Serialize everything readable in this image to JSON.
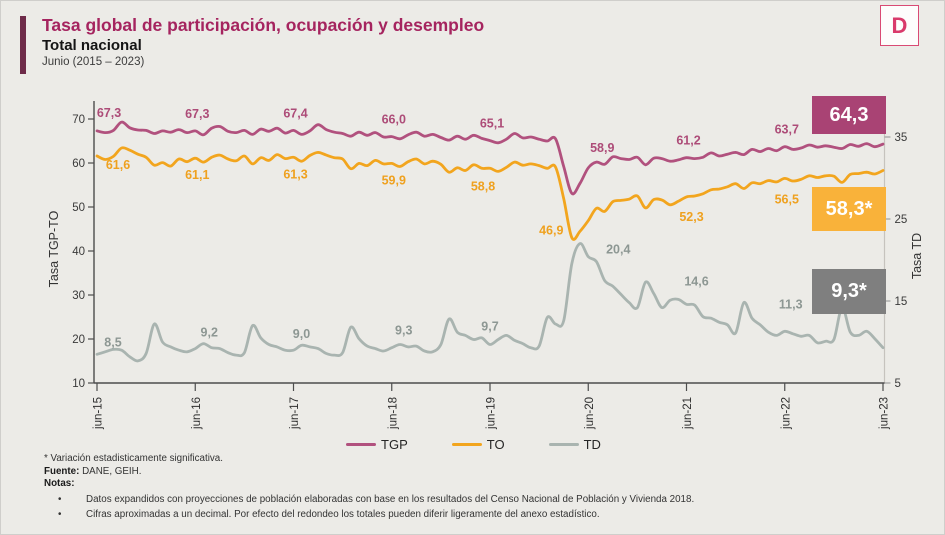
{
  "header": {
    "title": "Tasa global de participación, ocupación y desempleo",
    "subtitle": "Total nacional",
    "period": "Junio (2015 – 2023)",
    "logo_letter": "D"
  },
  "colors": {
    "background": "#ecebe7",
    "accent_bar": "#6e2b49",
    "title": "#a5245f",
    "tgp": "#b1517e",
    "to": "#f2a51e",
    "td": "#a9b4b0",
    "tgp_label": "#ad4c78",
    "to_label": "#efa11f",
    "td_label": "#8d9793",
    "tgp_box": "#a94374",
    "to_box": "#f9b23a",
    "td_box": "#7f7f7f",
    "axis": "#4d4d4d",
    "right_axis": "#c6c3be"
  },
  "chart_data": {
    "type": "line",
    "title": "Tasa global de participación, ocupación y desempleo — Total nacional, Junio (2015 – 2023)",
    "x_note": "monthly series from jun-15 to jun-23, labeled each June",
    "x_ticks": [
      "jun-15",
      "jun-16",
      "jun-17",
      "jun-18",
      "jun-19",
      "jun-20",
      "jun-21",
      "jun-22",
      "jun-23"
    ],
    "y_left": {
      "label": "Tasa TGP-TO",
      "min": 10,
      "max": 70,
      "step": 10
    },
    "y_right": {
      "label": "Tasa TD",
      "min": 5,
      "max": 35,
      "step": 10
    },
    "grid": false,
    "legend_position": "bottom",
    "series": [
      {
        "name": "TGP",
        "axis": "left",
        "values": [
          67.3,
          66.9,
          67.4,
          69.3,
          68.0,
          67.5,
          67.4,
          66.7,
          67.3,
          67.0,
          67.6,
          66.9,
          67.3,
          66.4,
          67.9,
          68.3,
          67.2,
          66.9,
          67.4,
          66.5,
          67.7,
          67.2,
          67.9,
          66.8,
          67.4,
          66.5,
          67.3,
          68.7,
          67.6,
          67.0,
          66.7,
          66.1,
          67.0,
          66.3,
          66.9,
          65.9,
          66.0,
          65.5,
          66.4,
          67.0,
          66.1,
          66.5,
          65.8,
          65.2,
          66.1,
          65.4,
          66.3,
          65.6,
          65.1,
          64.6,
          65.4,
          66.7,
          65.7,
          65.9,
          65.4,
          65.0,
          65.5,
          59.2,
          53.1,
          55.4,
          58.9,
          60.2,
          59.7,
          61.4,
          61.0,
          60.8,
          61.3,
          59.6,
          61.1,
          61.0,
          60.4,
          60.7,
          61.2,
          61.0,
          61.3,
          62.3,
          61.6,
          62.0,
          62.4,
          61.9,
          63.1,
          62.6,
          63.3,
          62.8,
          63.7,
          63.1,
          63.4,
          64.1,
          63.6,
          63.9,
          63.6,
          63.3,
          64.2,
          63.8,
          64.4,
          63.7,
          64.3
        ]
      },
      {
        "name": "TO",
        "axis": "left",
        "values": [
          61.6,
          60.8,
          61.5,
          63.4,
          62.9,
          62.0,
          61.3,
          59.5,
          60.1,
          59.3,
          60.9,
          60.3,
          61.1,
          60.2,
          61.3,
          61.8,
          60.9,
          60.5,
          61.6,
          59.8,
          61.2,
          60.6,
          61.9,
          61.0,
          61.3,
          60.4,
          61.7,
          62.4,
          61.8,
          61.2,
          60.9,
          58.7,
          59.9,
          59.4,
          60.6,
          59.8,
          59.9,
          59.2,
          60.3,
          60.9,
          59.8,
          60.4,
          59.7,
          57.9,
          58.9,
          58.3,
          59.6,
          58.8,
          58.8,
          58.1,
          59.0,
          60.2,
          59.5,
          59.8,
          59.4,
          58.8,
          59.1,
          51.9,
          43.0,
          44.5,
          46.9,
          49.7,
          49.0,
          51.2,
          51.5,
          51.8,
          52.5,
          49.8,
          51.7,
          51.6,
          50.5,
          51.3,
          52.3,
          52.5,
          53.0,
          53.9,
          54.1,
          54.6,
          55.3,
          54.2,
          55.5,
          55.3,
          56.0,
          55.7,
          56.5,
          55.9,
          56.3,
          57.1,
          56.7,
          57.1,
          57.0,
          55.6,
          57.4,
          57.6,
          57.9,
          57.5,
          58.3
        ]
      },
      {
        "name": "TD",
        "axis": "right",
        "values": [
          8.5,
          8.8,
          9.1,
          9.0,
          8.2,
          7.7,
          8.6,
          12.2,
          10.0,
          9.4,
          9.0,
          8.8,
          9.2,
          9.8,
          9.3,
          9.2,
          8.7,
          8.4,
          8.7,
          12.0,
          10.5,
          9.7,
          9.4,
          9.0,
          9.0,
          9.6,
          9.4,
          9.2,
          8.6,
          8.4,
          8.7,
          11.8,
          10.4,
          9.5,
          9.2,
          8.9,
          9.3,
          9.7,
          9.4,
          9.5,
          8.9,
          8.8,
          9.7,
          12.8,
          11.2,
          10.8,
          10.3,
          10.5,
          9.7,
          10.3,
          10.8,
          10.2,
          9.8,
          9.3,
          9.5,
          13.0,
          12.2,
          12.6,
          19.6,
          22.0,
          20.4,
          19.8,
          17.5,
          16.8,
          15.8,
          14.8,
          14.2,
          17.3,
          15.9,
          14.2,
          15.1,
          15.2,
          14.6,
          14.5,
          13.1,
          12.9,
          12.4,
          12.1,
          11.1,
          14.8,
          12.9,
          12.1,
          11.2,
          10.8,
          11.3,
          11.0,
          10.7,
          10.8,
          9.9,
          10.1,
          10.3,
          14.2,
          11.2,
          10.8,
          11.3,
          10.4,
          9.3
        ]
      }
    ],
    "annotations": {
      "TGP": [
        "67,3",
        "67,3",
        "67,4",
        "66,0",
        "65,1",
        "58,9",
        "61,2",
        "63,7"
      ],
      "TO": [
        "61,6",
        "61,1",
        "61,3",
        "59,9",
        "58,8",
        "46,9",
        "52,3",
        "56,5"
      ],
      "TD": [
        "8,5",
        "9,2",
        "9,0",
        "9,3",
        "9,7",
        "20,4",
        "14,6",
        "11,3"
      ]
    },
    "end_labels": {
      "TGP": "64,3",
      "TO": "58,3*",
      "TD": "9,3*"
    }
  },
  "legend": {
    "items": [
      "TGP",
      "TO",
      "TD"
    ]
  },
  "footer": {
    "footnote": "* Variación estadisticamente significativa.",
    "source_label": "Fuente:",
    "source_text": " DANE, GEIH.",
    "notes_label": "Notas:",
    "notes": [
      "Datos expandidos con proyecciones de población elaboradas con base en los resultados del Censo Nacional de Población y Vivienda 2018.",
      "Cifras aproximadas a un decimal. Por efecto del redondeo los totales pueden diferir ligeramente del anexo estadístico."
    ]
  }
}
